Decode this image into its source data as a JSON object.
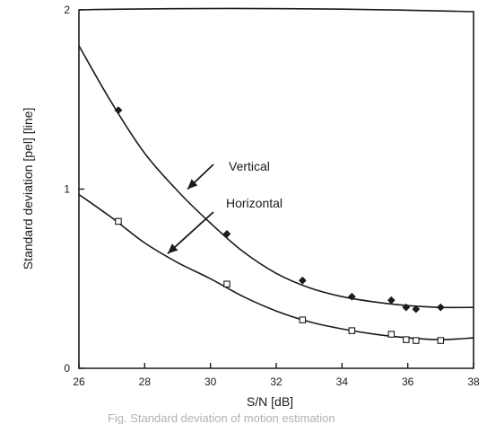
{
  "chart_data": {
    "type": "scatter",
    "title": "",
    "xlabel": "S/N  [dB]",
    "ylabel": "Standard deviation  [pel] [line]",
    "xlim": [
      26,
      38
    ],
    "ylim": [
      0,
      2
    ],
    "x_ticks": [
      26,
      28,
      30,
      32,
      34,
      36,
      38
    ],
    "y_ticks": [
      0,
      1,
      2
    ],
    "grid": false,
    "series": [
      {
        "name": "Vertical",
        "marker": "filled-diamond",
        "x": [
          27.2,
          30.5,
          32.8,
          34.3,
          35.5,
          35.95,
          36.25,
          37.0
        ],
        "y": [
          1.44,
          0.75,
          0.49,
          0.4,
          0.38,
          0.34,
          0.33,
          0.34
        ],
        "curve": {
          "x": [
            26.0,
            27.0,
            28.0,
            29.0,
            30.0,
            31.0,
            32.0,
            33.0,
            34.0,
            35.0,
            36.0,
            37.0,
            38.0
          ],
          "y": [
            1.8,
            1.48,
            1.2,
            0.99,
            0.81,
            0.65,
            0.53,
            0.45,
            0.4,
            0.37,
            0.35,
            0.34,
            0.34
          ]
        }
      },
      {
        "name": "Horizontal",
        "marker": "open-square",
        "x": [
          27.2,
          30.5,
          32.8,
          34.3,
          35.5,
          35.95,
          36.25,
          37.0
        ],
        "y": [
          0.82,
          0.47,
          0.27,
          0.21,
          0.19,
          0.16,
          0.155,
          0.155
        ],
        "curve": {
          "x": [
            26.0,
            27.0,
            28.0,
            29.0,
            30.0,
            31.0,
            32.0,
            33.0,
            34.0,
            35.0,
            36.0,
            37.0,
            38.0
          ],
          "y": [
            0.97,
            0.84,
            0.7,
            0.59,
            0.5,
            0.4,
            0.32,
            0.26,
            0.22,
            0.19,
            0.17,
            0.16,
            0.17
          ]
        }
      }
    ],
    "annotations": [
      {
        "text": "Vertical",
        "arrow_target": {
          "x": 29.3,
          "y": 1.0
        }
      },
      {
        "text": "Horizontal",
        "arrow_target": {
          "x": 28.7,
          "y": 0.64
        }
      }
    ]
  },
  "caption_fragment": "Fig.  Standard deviation of motion estimation"
}
